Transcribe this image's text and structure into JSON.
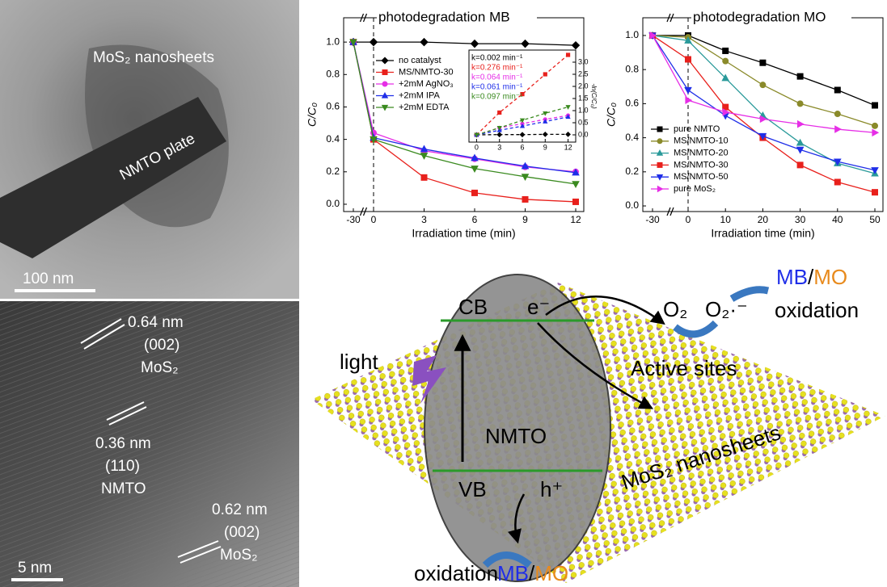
{
  "chart_data": [
    {
      "type": "line",
      "title": "photodegradation MB",
      "xlabel": "Irradiation time (min)",
      "ylabel": "C/C₀",
      "x": [
        -30,
        0,
        3,
        6,
        9,
        12
      ],
      "xticks": [
        -30,
        0,
        3,
        6,
        9,
        12
      ],
      "ylim": [
        -0.045,
        1.15
      ],
      "yticks": [
        {
          "value": 0,
          "label": "0.0"
        },
        {
          "value": 0.2,
          "label": "0.2"
        },
        {
          "value": 0.4,
          "label": "0.4"
        },
        {
          "value": 0.6,
          "label": "0.6"
        },
        {
          "value": 0.8,
          "label": "0.8"
        },
        {
          "value": 1,
          "label": "1.0"
        }
      ],
      "legend": "center",
      "series": [
        {
          "name": "no catalyst",
          "color": "#000000",
          "marker": "diamond",
          "values": [
            1.0,
            1.0,
            1.0,
            0.99,
            0.99,
            0.98
          ]
        },
        {
          "name": "MS/NMTO-30",
          "color": "#e8201c",
          "marker": "square",
          "values": [
            1.0,
            0.4,
            0.165,
            0.07,
            0.03,
            0.015
          ]
        },
        {
          "name": "+2mM AgNO₃",
          "color": "#e62ee6",
          "marker": "circle",
          "values": [
            1.0,
            0.44,
            0.33,
            0.28,
            0.23,
            0.2
          ]
        },
        {
          "name": "+2mM IPA",
          "color": "#1f2ee8",
          "marker": "triangle",
          "values": [
            1.0,
            0.41,
            0.34,
            0.285,
            0.235,
            0.195
          ]
        },
        {
          "name": "+2mM EDTA",
          "color": "#3a8a1f",
          "marker": "triangle-down",
          "values": [
            1.0,
            0.4,
            0.3,
            0.22,
            0.17,
            0.125
          ]
        }
      ]
    },
    {
      "type": "line",
      "title": "photodegradation MO",
      "xlabel": "Irradiation time (min)",
      "ylabel": "C/C₀",
      "x": [
        -30,
        0,
        10,
        20,
        30,
        40,
        50
      ],
      "xticks": [
        -30,
        0,
        10,
        20,
        30,
        40,
        50
      ],
      "ylim": [
        -0.033,
        1.104
      ],
      "yticks": [
        {
          "value": 0,
          "label": "0.0"
        },
        {
          "value": 0.2,
          "label": "0.2"
        },
        {
          "value": 0.4,
          "label": "0.4"
        },
        {
          "value": 0.6,
          "label": "0.6"
        },
        {
          "value": 0.8,
          "label": "0.8"
        },
        {
          "value": 1,
          "label": "1.0"
        }
      ],
      "legend": "lower left",
      "series": [
        {
          "name": "pure NMTO",
          "color": "#000000",
          "marker": "square",
          "values": [
            1.0,
            1.0,
            0.91,
            0.84,
            0.76,
            0.68,
            0.59
          ]
        },
        {
          "name": "MS/NMTO-10",
          "color": "#8a8a2a",
          "marker": "circle",
          "values": [
            1.0,
            0.99,
            0.85,
            0.71,
            0.6,
            0.54,
            0.47
          ]
        },
        {
          "name": "MS/NMTO-20",
          "color": "#2a9a9a",
          "marker": "triangle",
          "values": [
            1.0,
            0.97,
            0.75,
            0.53,
            0.37,
            0.25,
            0.19
          ]
        },
        {
          "name": "MS/NMTO-30",
          "color": "#e8201c",
          "marker": "square",
          "values": [
            1.0,
            0.86,
            0.58,
            0.4,
            0.24,
            0.14,
            0.08
          ]
        },
        {
          "name": "MS/NMTO-50",
          "color": "#1f2ee8",
          "marker": "triangle-down",
          "values": [
            1.0,
            0.68,
            0.53,
            0.41,
            0.33,
            0.26,
            0.21
          ]
        },
        {
          "name": "pure MoS₂",
          "color": "#e62ee6",
          "marker": "triangle-right",
          "values": [
            1.0,
            0.62,
            0.55,
            0.51,
            0.48,
            0.45,
            0.43
          ]
        }
      ]
    },
    {
      "type": "line",
      "ylabel": "-ln(C/C₀)",
      "linestyle": "dashed",
      "x": [
        0,
        3,
        6,
        9,
        12
      ],
      "xlim": [
        -1,
        13
      ],
      "xticks": [
        0,
        3,
        6,
        9,
        12
      ],
      "ylim": [
        -0.3,
        3.5
      ],
      "yticks": [
        {
          "value": 0,
          "label": "0.0"
        },
        {
          "value": 0.5,
          "label": "0.5"
        },
        {
          "value": 1,
          "label": "1.0"
        },
        {
          "value": 1.5,
          "label": "1.5"
        },
        {
          "value": 2,
          "label": "2.0"
        },
        {
          "value": 2.5,
          "label": "2.5"
        },
        {
          "value": 3,
          "label": "3.0"
        }
      ],
      "annotations": [
        {
          "text": "k=0.002 min⁻¹",
          "color": "#000000"
        },
        {
          "text": "k=0.276 min⁻¹",
          "color": "#e8201c"
        },
        {
          "text": "k=0.064 min⁻¹",
          "color": "#e62ee6"
        },
        {
          "text": "k=0.061 min⁻¹",
          "color": "#1f2ee8"
        },
        {
          "text": "k=0.097 min⁻¹",
          "color": "#3a8a1f"
        }
      ],
      "series": [
        {
          "color": "#000000",
          "marker": "diamond",
          "values": [
            0,
            0.01,
            0.01,
            0.02,
            0.02
          ]
        },
        {
          "color": "#e8201c",
          "marker": "square",
          "values": [
            0,
            0.92,
            1.68,
            2.5,
            3.3
          ]
        },
        {
          "color": "#e62ee6",
          "marker": "circle",
          "values": [
            0,
            0.29,
            0.46,
            0.64,
            0.8
          ]
        },
        {
          "color": "#1f2ee8",
          "marker": "triangle",
          "values": [
            0,
            0.19,
            0.36,
            0.55,
            0.74
          ]
        },
        {
          "color": "#3a8a1f",
          "marker": "triangle-down",
          "values": [
            0,
            0.29,
            0.6,
            0.89,
            1.15
          ]
        }
      ]
    }
  ],
  "tem": {
    "top": {
      "sheets": "MoS₂ nanosheets",
      "plate": "NMTO plate",
      "scale": "100 nm"
    },
    "bottom": {
      "d1": "0.64 nm",
      "p1": "(002)",
      "m1": "MoS₂",
      "d2": "0.36 nm",
      "p2": "(110)",
      "m2": "NMTO",
      "d3": "0.62 nm",
      "p3": "(002)",
      "m3": "MoS₂",
      "scale": "5 nm"
    }
  },
  "scheme": {
    "cb": "CB",
    "e": "e⁻",
    "vb": "VB",
    "h": "h⁺",
    "nmto": "NMTO",
    "light": "light",
    "o2": "O₂",
    "o2r": "O₂·⁻",
    "mb1": "MB",
    "slash1": "/",
    "mo1": "MO",
    "ox1": "oxidation",
    "sites": "Active sites",
    "sheets": "MoS₂ nanosheets",
    "ox2": "oxidation",
    "mb2": "MB",
    "slash2": "/",
    "mo2": "MO"
  }
}
